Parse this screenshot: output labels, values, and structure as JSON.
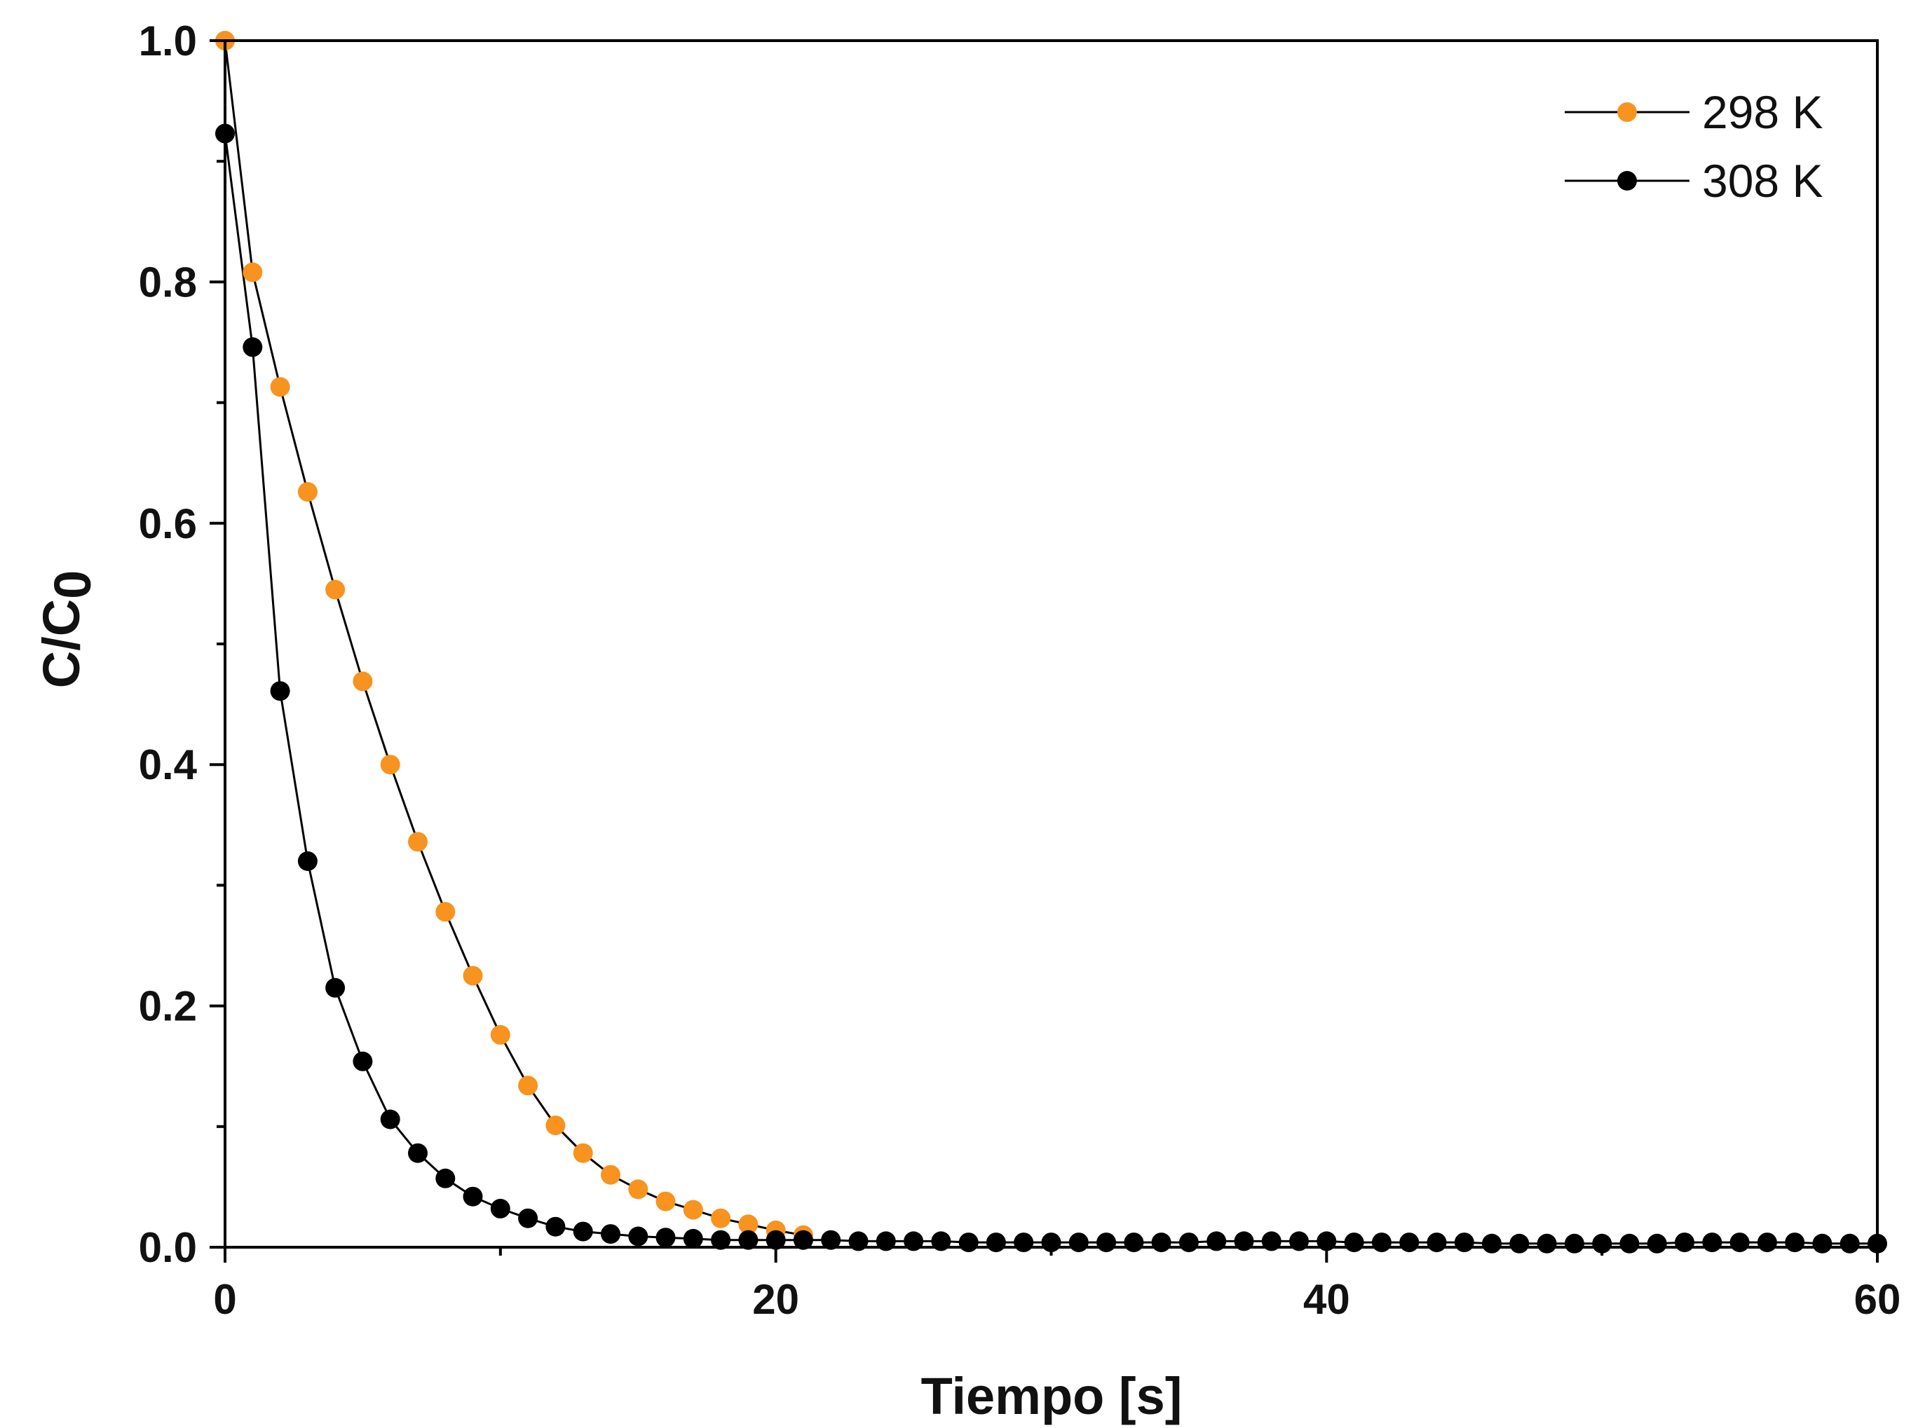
{
  "chart_data": {
    "type": "line",
    "title": "",
    "xlabel": "Tiempo [s]",
    "ylabel_main": "C/C",
    "ylabel_sub": "0",
    "xlim": [
      0,
      60
    ],
    "ylim": [
      0,
      1
    ],
    "x_ticks": [
      0,
      20,
      40,
      60
    ],
    "x_tick_labels": [
      "0",
      "20",
      "40",
      "60"
    ],
    "y_ticks": [
      0.0,
      0.2,
      0.4,
      0.6,
      0.8,
      1.0
    ],
    "y_tick_labels": [
      "0.0",
      "0.2",
      "0.4",
      "0.6",
      "0.8",
      "1.0"
    ],
    "grid": false,
    "legend_position": "top-right",
    "series": [
      {
        "name": "298 K",
        "color": "#f7931e",
        "x": [
          0,
          1,
          2,
          3,
          4,
          5,
          6,
          7,
          8,
          9,
          10,
          11,
          12,
          13,
          14,
          15,
          16,
          17,
          18,
          19,
          20,
          21
        ],
        "y": [
          1.0,
          0.808,
          0.713,
          0.626,
          0.545,
          0.469,
          0.4,
          0.336,
          0.278,
          0.225,
          0.176,
          0.134,
          0.101,
          0.078,
          0.06,
          0.048,
          0.038,
          0.031,
          0.024,
          0.019,
          0.014,
          0.01
        ]
      },
      {
        "name": "308 K",
        "color": "#000000",
        "x": [
          0,
          1,
          2,
          3,
          4,
          5,
          6,
          7,
          8,
          9,
          10,
          11,
          12,
          13,
          14,
          15,
          16,
          17,
          18,
          19,
          20,
          21,
          22,
          23,
          24,
          25,
          26,
          27,
          28,
          29,
          30,
          31,
          32,
          33,
          34,
          35,
          36,
          37,
          38,
          39,
          40,
          41,
          42,
          43,
          44,
          45,
          46,
          47,
          48,
          49,
          50,
          51,
          52,
          53,
          54,
          55,
          56,
          57,
          58,
          59,
          60
        ],
        "y": [
          0.923,
          0.746,
          0.461,
          0.32,
          0.215,
          0.154,
          0.106,
          0.078,
          0.057,
          0.042,
          0.032,
          0.024,
          0.017,
          0.013,
          0.011,
          0.009,
          0.008,
          0.007,
          0.006,
          0.006,
          0.006,
          0.006,
          0.006,
          0.005,
          0.005,
          0.005,
          0.005,
          0.004,
          0.004,
          0.004,
          0.004,
          0.004,
          0.004,
          0.004,
          0.004,
          0.004,
          0.005,
          0.005,
          0.005,
          0.005,
          0.005,
          0.004,
          0.004,
          0.004,
          0.004,
          0.004,
          0.003,
          0.003,
          0.003,
          0.003,
          0.003,
          0.003,
          0.003,
          0.004,
          0.004,
          0.004,
          0.004,
          0.004,
          0.003,
          0.003,
          0.003
        ]
      }
    ]
  }
}
